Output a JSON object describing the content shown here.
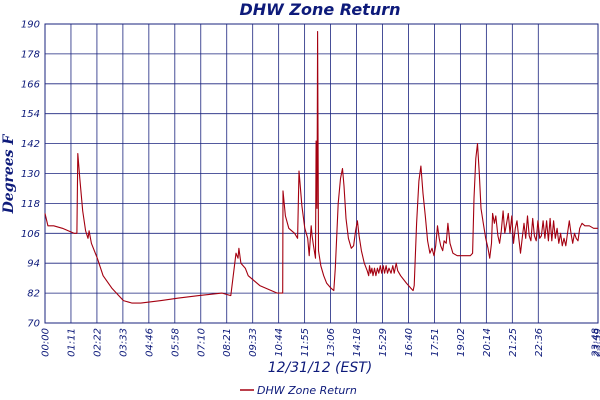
{
  "chart_data": {
    "type": "line",
    "title": "DHW Zone Return",
    "xlabel": "12/31/12 (EST)",
    "ylabel": "Degrees F",
    "ylim": [
      70,
      190
    ],
    "yticks": [
      70,
      82,
      94,
      106,
      118,
      130,
      142,
      154,
      166,
      178,
      190
    ],
    "xticks": [
      "00:00",
      "01:11",
      "02:22",
      "03:33",
      "04:46",
      "05:58",
      "07:10",
      "08:21",
      "09:33",
      "10:44",
      "11:55",
      "13:06",
      "14:18",
      "15:29",
      "16:40",
      "17:51",
      "19:02",
      "20:14",
      "21:25",
      "22:36",
      "23:48",
      "23:59"
    ],
    "grid": true,
    "legend_position": "bottom-center",
    "colors": {
      "series": "#a40010",
      "grid": "#1a237e",
      "text": "#0d1a7a"
    },
    "series": [
      {
        "name": "DHW Zone Return",
        "points": [
          [
            0,
            114
          ],
          [
            10,
            109
          ],
          [
            30,
            109
          ],
          [
            60,
            108
          ],
          [
            100,
            106
          ],
          [
            110,
            106
          ],
          [
            113,
            138
          ],
          [
            120,
            128
          ],
          [
            130,
            115
          ],
          [
            140,
            107
          ],
          [
            148,
            104
          ],
          [
            152,
            107
          ],
          [
            160,
            102
          ],
          [
            180,
            96
          ],
          [
            200,
            89
          ],
          [
            230,
            84
          ],
          [
            270,
            79
          ],
          [
            300,
            78
          ],
          [
            330,
            78
          ],
          [
            400,
            79
          ],
          [
            460,
            80
          ],
          [
            530,
            81
          ],
          [
            610,
            82
          ],
          [
            640,
            81
          ],
          [
            658,
            98
          ],
          [
            665,
            96
          ],
          [
            668,
            100
          ],
          [
            675,
            94
          ],
          [
            690,
            92
          ],
          [
            700,
            89
          ],
          [
            740,
            85
          ],
          [
            800,
            82
          ],
          [
            815,
            82
          ],
          [
            819,
            82
          ],
          [
            820,
            123
          ],
          [
            828,
            113
          ],
          [
            840,
            108
          ],
          [
            860,
            106
          ],
          [
            870,
            104
          ],
          [
            875,
            131
          ],
          [
            885,
            117
          ],
          [
            895,
            108
          ],
          [
            905,
            104
          ],
          [
            910,
            97
          ],
          [
            913,
            102
          ],
          [
            917,
            109
          ],
          [
            920,
            105
          ],
          [
            925,
            101
          ],
          [
            932,
            96
          ],
          [
            934,
            143
          ],
          [
            937,
            116
          ],
          [
            939,
            187
          ],
          [
            942,
            99
          ],
          [
            950,
            93
          ],
          [
            960,
            89
          ],
          [
            970,
            86
          ],
          [
            985,
            84
          ],
          [
            995,
            83
          ],
          [
            1000,
            92
          ],
          [
            1010,
            118
          ],
          [
            1018,
            128
          ],
          [
            1025,
            132
          ],
          [
            1030,
            125
          ],
          [
            1037,
            112
          ],
          [
            1045,
            104
          ],
          [
            1055,
            100
          ],
          [
            1063,
            101
          ],
          [
            1070,
            107
          ],
          [
            1076,
            111
          ],
          [
            1082,
            105
          ],
          [
            1090,
            99
          ],
          [
            1100,
            94
          ],
          [
            1110,
            91
          ],
          [
            1115,
            89
          ],
          [
            1118,
            93
          ],
          [
            1122,
            90
          ],
          [
            1126,
            92
          ],
          [
            1130,
            89
          ],
          [
            1135,
            92
          ],
          [
            1140,
            89
          ],
          [
            1145,
            92
          ],
          [
            1150,
            90
          ],
          [
            1155,
            93
          ],
          [
            1160,
            90
          ],
          [
            1165,
            93
          ],
          [
            1170,
            90
          ],
          [
            1175,
            93
          ],
          [
            1180,
            90
          ],
          [
            1185,
            92
          ],
          [
            1192,
            90
          ],
          [
            1198,
            93
          ],
          [
            1203,
            90
          ],
          [
            1210,
            94
          ],
          [
            1215,
            91
          ],
          [
            1225,
            89
          ],
          [
            1245,
            86
          ],
          [
            1260,
            84
          ],
          [
            1268,
            83
          ],
          [
            1272,
            85
          ],
          [
            1280,
            110
          ],
          [
            1288,
            127
          ],
          [
            1295,
            133
          ],
          [
            1302,
            122
          ],
          [
            1310,
            113
          ],
          [
            1318,
            103
          ],
          [
            1326,
            98
          ],
          [
            1333,
            100
          ],
          [
            1340,
            97
          ],
          [
            1346,
            101
          ],
          [
            1352,
            109
          ],
          [
            1358,
            104
          ],
          [
            1363,
            101
          ],
          [
            1370,
            99
          ],
          [
            1375,
            103
          ],
          [
            1382,
            102
          ],
          [
            1388,
            110
          ],
          [
            1395,
            102
          ],
          [
            1405,
            98
          ],
          [
            1420,
            97
          ],
          [
            1440,
            97
          ],
          [
            1465,
            97
          ],
          [
            1473,
            98
          ],
          [
            1478,
            120
          ],
          [
            1484,
            136
          ],
          [
            1490,
            142
          ],
          [
            1496,
            130
          ],
          [
            1502,
            116
          ],
          [
            1510,
            110
          ],
          [
            1518,
            104
          ],
          [
            1526,
            100
          ],
          [
            1532,
            96
          ],
          [
            1538,
            102
          ],
          [
            1542,
            114
          ],
          [
            1548,
            110
          ],
          [
            1553,
            113
          ],
          [
            1560,
            105
          ],
          [
            1566,
            102
          ],
          [
            1572,
            107
          ],
          [
            1578,
            115
          ],
          [
            1584,
            106
          ],
          [
            1590,
            110
          ],
          [
            1596,
            114
          ],
          [
            1602,
            106
          ],
          [
            1608,
            113
          ],
          [
            1614,
            102
          ],
          [
            1620,
            108
          ],
          [
            1626,
            111
          ],
          [
            1632,
            104
          ],
          [
            1638,
            98
          ],
          [
            1644,
            104
          ],
          [
            1650,
            110
          ],
          [
            1656,
            104
          ],
          [
            1662,
            113
          ],
          [
            1668,
            105
          ],
          [
            1674,
            103
          ],
          [
            1680,
            112
          ],
          [
            1686,
            105
          ],
          [
            1692,
            103
          ],
          [
            1698,
            111
          ],
          [
            1704,
            104
          ],
          [
            1710,
            105
          ],
          [
            1716,
            111
          ],
          [
            1722,
            104
          ],
          [
            1728,
            111
          ],
          [
            1734,
            103
          ],
          [
            1740,
            112
          ],
          [
            1746,
            103
          ],
          [
            1752,
            111
          ],
          [
            1758,
            104
          ],
          [
            1764,
            108
          ],
          [
            1770,
            102
          ],
          [
            1776,
            106
          ],
          [
            1782,
            101
          ],
          [
            1788,
            104
          ],
          [
            1794,
            101
          ],
          [
            1800,
            106
          ],
          [
            1806,
            111
          ],
          [
            1812,
            106
          ],
          [
            1818,
            102
          ],
          [
            1824,
            106
          ],
          [
            1830,
            104
          ],
          [
            1836,
            103
          ],
          [
            1842,
            108
          ],
          [
            1850,
            110
          ],
          [
            1860,
            109
          ],
          [
            1875,
            109
          ],
          [
            1890,
            108
          ],
          [
            1900,
            108
          ],
          [
            1905,
            108
          ]
        ]
      }
    ]
  }
}
